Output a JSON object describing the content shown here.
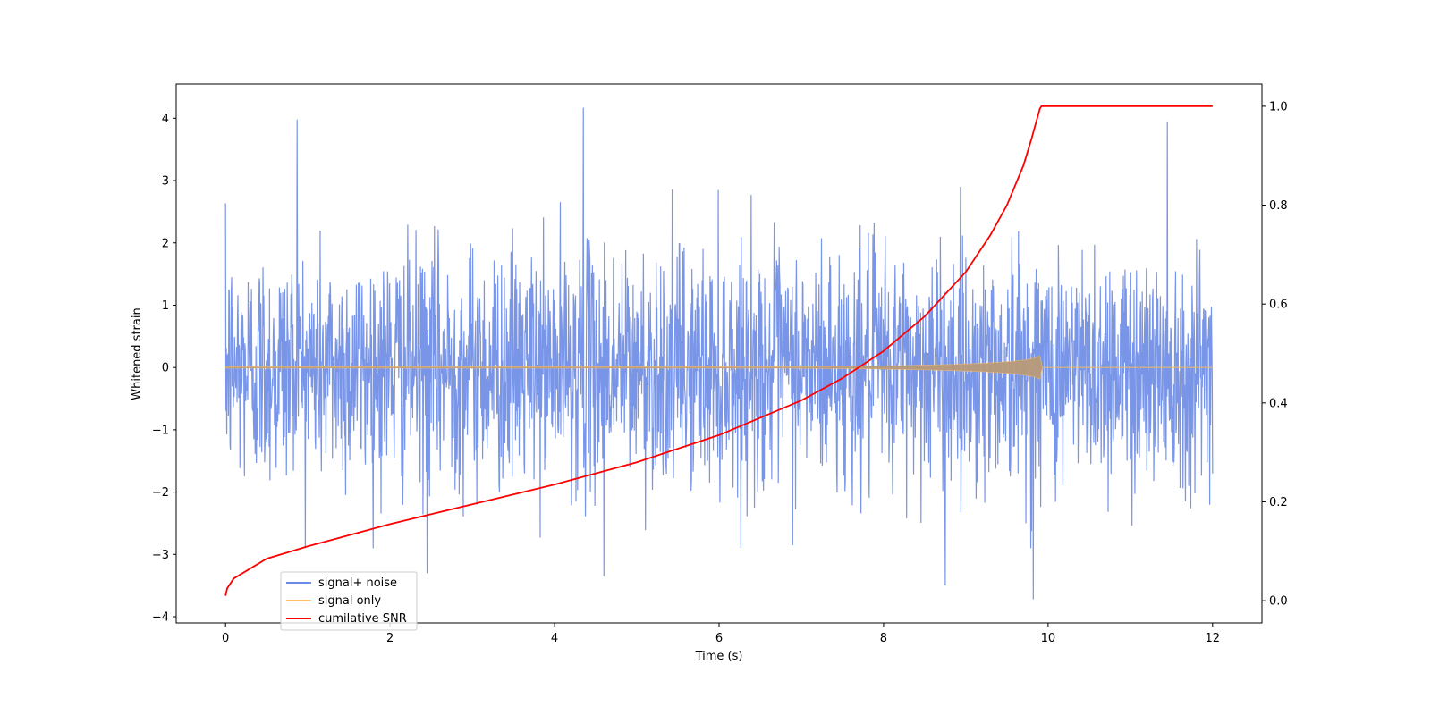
{
  "chart_data": {
    "type": "line",
    "title": "",
    "xlabel": "Time (s)",
    "ylabel": "Whitened strain",
    "y2label": "",
    "xlim": [
      -0.6,
      12.6
    ],
    "ylim": [
      -4.1,
      4.55
    ],
    "y2lim": [
      -0.045,
      1.045
    ],
    "xticks": [
      0,
      2,
      4,
      6,
      8,
      10,
      12
    ],
    "xtick_labels": [
      "0",
      "2",
      "4",
      "6",
      "8",
      "10",
      "12"
    ],
    "yticks": [
      -4,
      -3,
      -2,
      -1,
      0,
      1,
      2,
      3,
      4
    ],
    "ytick_labels": [
      "−4",
      "−3",
      "−2",
      "−1",
      "0",
      "1",
      "2",
      "3",
      "4"
    ],
    "y2ticks": [
      0.0,
      0.2,
      0.4,
      0.6,
      0.8,
      1.0
    ],
    "y2tick_labels": [
      "0.0",
      "0.2",
      "0.4",
      "0.6",
      "0.8",
      "1.0"
    ],
    "grid": false,
    "legend_position": "lower-left",
    "series": [
      {
        "name": "signal+ noise",
        "axis": "left",
        "color": "#6a8ae6",
        "kind": "noise",
        "x_range": [
          0,
          12
        ],
        "typical_amplitude": [
          -2.0,
          2.0
        ],
        "extremes": [
          {
            "x": 0.87,
            "y": 3.98
          },
          {
            "x": 4.35,
            "y": 4.17
          },
          {
            "x": 11.45,
            "y": 3.95
          },
          {
            "x": 2.45,
            "y": -3.3
          },
          {
            "x": 4.6,
            "y": -3.35
          },
          {
            "x": 8.75,
            "y": -3.5
          },
          {
            "x": 9.82,
            "y": -3.72
          }
        ]
      },
      {
        "name": "signal only",
        "axis": "left",
        "color": "#ffbf66",
        "kind": "chirp",
        "x_range": [
          0,
          12
        ],
        "merger_time": 9.92,
        "peak_amplitude": 0.25
      },
      {
        "name": "cumilative SNR",
        "axis": "right",
        "color": "#ff0000",
        "kind": "curve",
        "x": [
          0,
          0.02,
          0.1,
          0.5,
          1,
          2,
          3,
          4,
          5,
          6,
          7,
          7.5,
          8,
          8.5,
          9,
          9.3,
          9.5,
          9.7,
          9.8,
          9.85,
          9.9,
          9.92,
          10,
          11,
          12
        ],
        "y": [
          0.01,
          0.025,
          0.045,
          0.085,
          0.11,
          0.155,
          0.195,
          0.235,
          0.28,
          0.335,
          0.405,
          0.45,
          0.505,
          0.575,
          0.665,
          0.74,
          0.8,
          0.88,
          0.935,
          0.965,
          0.995,
          1.0,
          1.0,
          1.0,
          1.0
        ]
      }
    ]
  }
}
